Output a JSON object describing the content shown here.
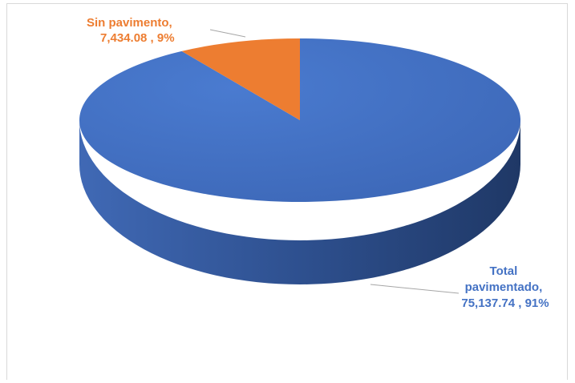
{
  "chart_data": {
    "type": "pie",
    "style": "3d",
    "slices": [
      {
        "label_line1": "Total",
        "label_line2": "pavimentado,",
        "label_line3": "75,137.74 , 91%",
        "value": 75137.74,
        "percent": 91,
        "color": "#4472C4"
      },
      {
        "label_line1": "Sin pavimento,",
        "label_line2": "7,434.08 , 9%",
        "value": 7434.08,
        "percent": 9,
        "color": "#ED7D31"
      }
    ]
  }
}
